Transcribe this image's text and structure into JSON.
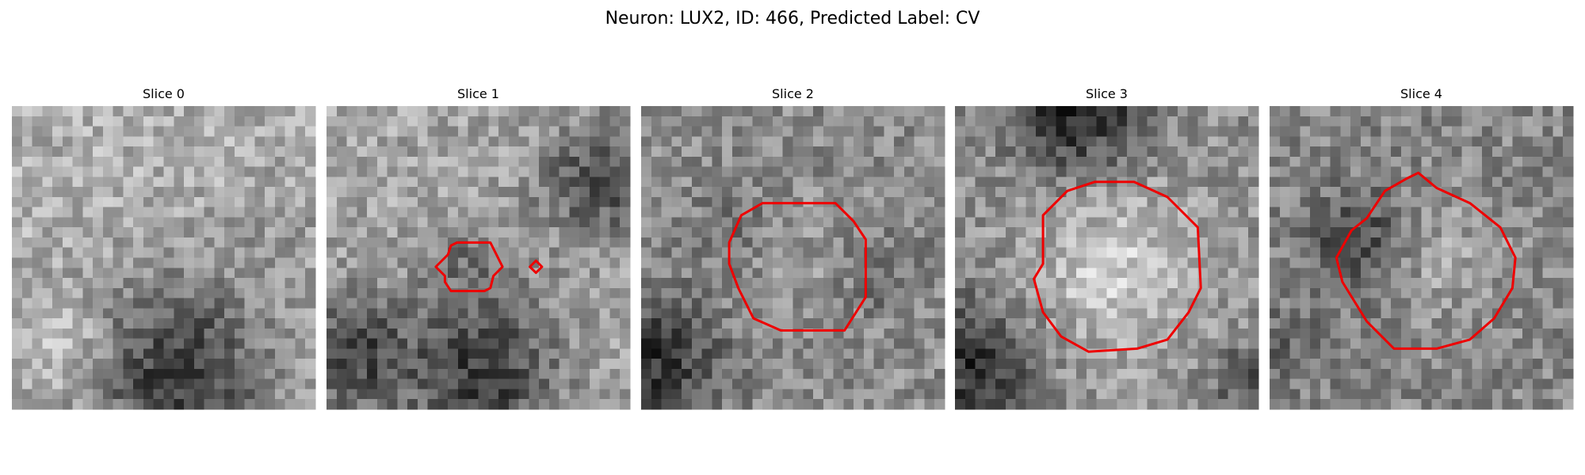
{
  "title": "Neuron: LUX2, ID: 466, Predicted Label: CV",
  "panels": [
    {
      "title": "Slice 0"
    },
    {
      "title": "Slice 1"
    },
    {
      "title": "Slice 2"
    },
    {
      "title": "Slice 3"
    },
    {
      "title": "Slice 4"
    }
  ]
}
